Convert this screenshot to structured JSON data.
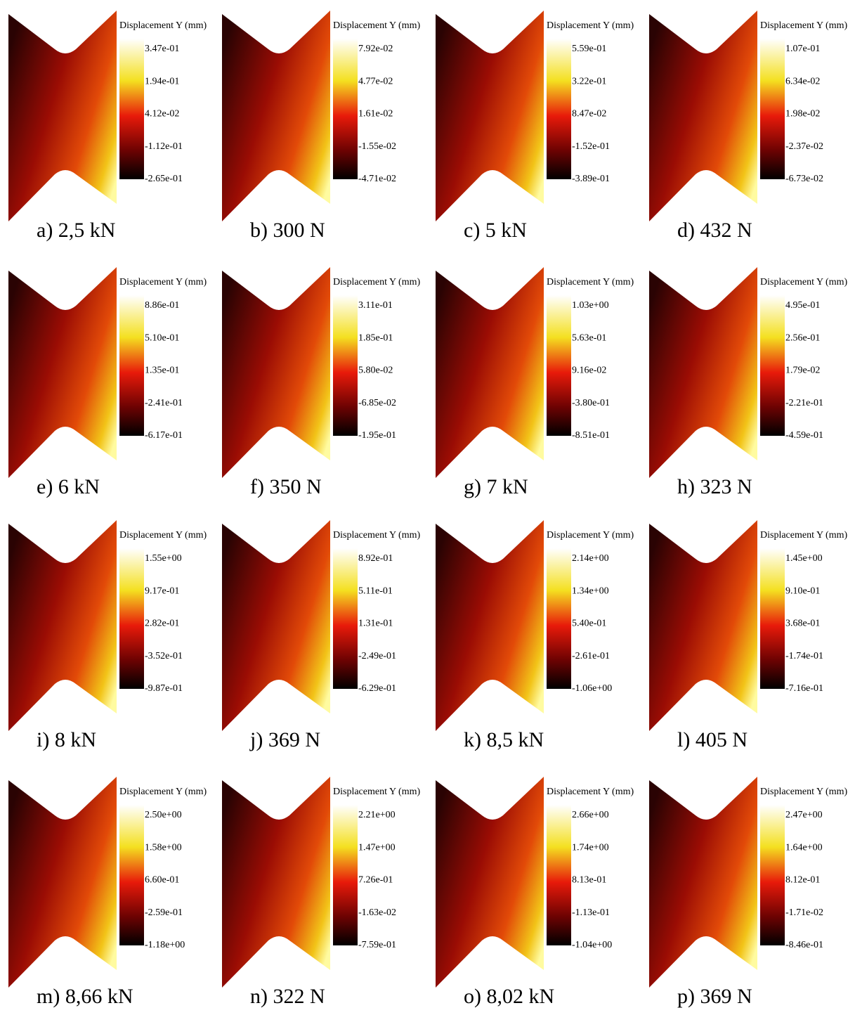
{
  "panels": [
    {
      "caption": "a) 2,5 kN",
      "legend_title": "Displacement Y (mm)",
      "ticks": [
        "3.47e-01",
        "1.94e-01",
        "4.12e-02",
        "-1.12e-01",
        "-2.65e-01"
      ]
    },
    {
      "caption": "b) 300 N",
      "legend_title": "Displacement Y (mm)",
      "ticks": [
        "7.92e-02",
        "4.77e-02",
        "1.61e-02",
        "-1.55e-02",
        "-4.71e-02"
      ]
    },
    {
      "caption": "c) 5 kN",
      "legend_title": "Displacement Y (mm)",
      "ticks": [
        "5.59e-01",
        "3.22e-01",
        "8.47e-02",
        "-1.52e-01",
        "-3.89e-01"
      ]
    },
    {
      "caption": "d) 432 N",
      "legend_title": "Displacement Y (mm)",
      "ticks": [
        "1.07e-01",
        "6.34e-02",
        "1.98e-02",
        "-2.37e-02",
        "-6.73e-02"
      ]
    },
    {
      "caption": "e) 6 kN",
      "legend_title": "Displacement Y (mm)",
      "ticks": [
        "8.86e-01",
        "5.10e-01",
        "1.35e-01",
        "-2.41e-01",
        "-6.17e-01"
      ]
    },
    {
      "caption": "f) 350 N",
      "legend_title": "Displacement Y (mm)",
      "ticks": [
        "3.11e-01",
        "1.85e-01",
        "5.80e-02",
        "-6.85e-02",
        "-1.95e-01"
      ]
    },
    {
      "caption": "g) 7 kN",
      "legend_title": "Displacement Y (mm)",
      "ticks": [
        "1.03e+00",
        "5.63e-01",
        "9.16e-02",
        "-3.80e-01",
        "-8.51e-01"
      ]
    },
    {
      "caption": "h) 323 N",
      "legend_title": "Displacement Y (mm)",
      "ticks": [
        "4.95e-01",
        "2.56e-01",
        "1.79e-02",
        "-2.21e-01",
        "-4.59e-01"
      ]
    },
    {
      "caption": "i) 8 kN",
      "legend_title": "Displacement Y (mm)",
      "ticks": [
        "1.55e+00",
        "9.17e-01",
        "2.82e-01",
        "-3.52e-01",
        "-9.87e-01"
      ]
    },
    {
      "caption": "j) 369 N",
      "legend_title": "Displacement Y (mm)",
      "ticks": [
        "8.92e-01",
        "5.11e-01",
        "1.31e-01",
        "-2.49e-01",
        "-6.29e-01"
      ]
    },
    {
      "caption": "k) 8,5 kN",
      "legend_title": "Displacement Y (mm)",
      "ticks": [
        "2.14e+00",
        "1.34e+00",
        "5.40e-01",
        "-2.61e-01",
        "-1.06e+00"
      ]
    },
    {
      "caption": "l) 405 N",
      "legend_title": "Displacement Y (mm)",
      "ticks": [
        "1.45e+00",
        "9.10e-01",
        "3.68e-01",
        "-1.74e-01",
        "-7.16e-01"
      ]
    },
    {
      "caption": "m) 8,66 kN",
      "legend_title": "Displacement Y (mm)",
      "ticks": [
        "2.50e+00",
        "1.58e+00",
        "6.60e-01",
        "-2.59e-01",
        "-1.18e+00"
      ]
    },
    {
      "caption": "n) 322 N",
      "legend_title": "Displacement Y (mm)",
      "ticks": [
        "2.21e+00",
        "1.47e+00",
        "7.26e-01",
        "-1.63e-02",
        "-7.59e-01"
      ]
    },
    {
      "caption": "o) 8,02 kN",
      "legend_title": "Displacement Y (mm)",
      "ticks": [
        "2.66e+00",
        "1.74e+00",
        "8.13e-01",
        "-1.13e-01",
        "-1.04e+00"
      ]
    },
    {
      "caption": "p) 369 N",
      "legend_title": "Displacement Y (mm)",
      "ticks": [
        "2.47e+00",
        "1.64e+00",
        "8.12e-01",
        "-1.71e-02",
        "-8.46e-01"
      ]
    }
  ]
}
